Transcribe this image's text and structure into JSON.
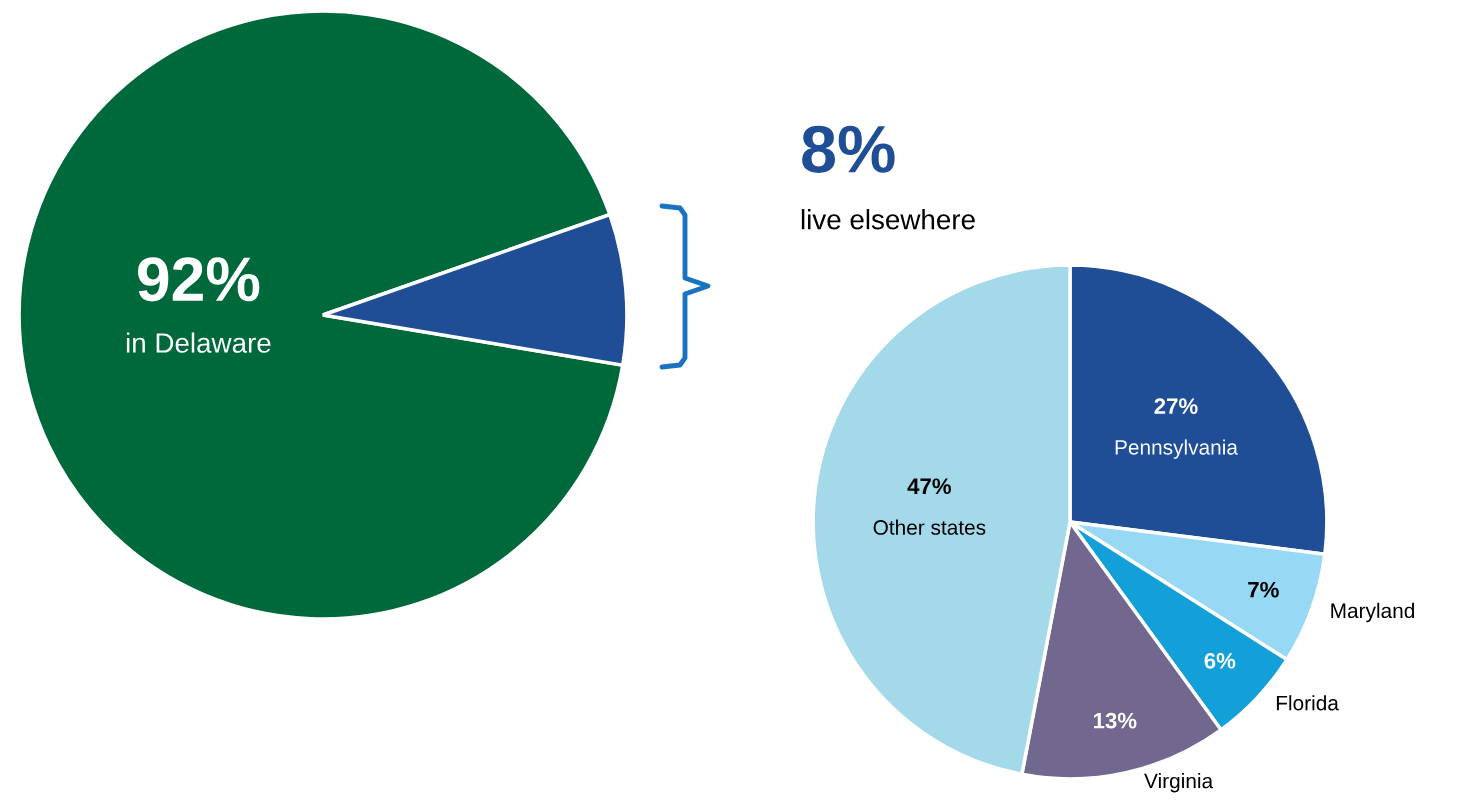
{
  "chart_data": [
    {
      "type": "pie",
      "categories": [
        "in Delaware",
        null
      ],
      "values": [
        92,
        8
      ],
      "colors": [
        "#00693c",
        "#1f4e96"
      ],
      "value_labels": [
        "92%",
        null
      ],
      "legend": false
    },
    {
      "type": "pie",
      "title": "8%",
      "subtitle": "live elsewhere",
      "categories": [
        "Pennsylvania",
        "Maryland",
        "Florida",
        "Virginia",
        "Other states"
      ],
      "values": [
        27,
        7,
        6,
        13,
        47
      ],
      "colors": [
        "#1f4e96",
        "#97d9f5",
        "#139fd8",
        "#72678f",
        "#a3d9e8"
      ],
      "value_labels": [
        "27%",
        "7%",
        "6%",
        "13%",
        "47%"
      ],
      "legend": false
    }
  ]
}
